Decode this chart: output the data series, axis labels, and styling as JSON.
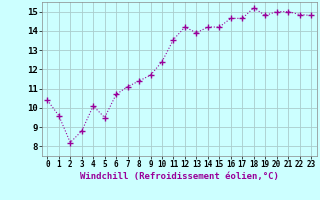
{
  "x": [
    0,
    1,
    2,
    3,
    4,
    5,
    6,
    7,
    8,
    9,
    10,
    11,
    12,
    13,
    14,
    15,
    16,
    17,
    18,
    19,
    20,
    21,
    22,
    23
  ],
  "y": [
    10.4,
    9.6,
    8.2,
    8.8,
    10.1,
    9.5,
    10.7,
    11.1,
    11.4,
    11.7,
    12.4,
    13.55,
    14.2,
    13.9,
    14.2,
    14.2,
    14.65,
    14.65,
    15.2,
    14.8,
    15.0,
    15.0,
    14.85,
    14.8
  ],
  "line_color": "#990099",
  "marker": "+",
  "markersize": 4,
  "linewidth": 0.8,
  "bg_color": "#ccffff",
  "grid_color": "#aacccc",
  "xlabel": "Windchill (Refroidissement éolien,°C)",
  "xlabel_fontsize": 6.5,
  "xlim": [
    -0.5,
    23.5
  ],
  "ylim": [
    7.5,
    15.5
  ],
  "yticks": [
    8,
    9,
    10,
    11,
    12,
    13,
    14,
    15
  ],
  "xticks": [
    0,
    1,
    2,
    3,
    4,
    5,
    6,
    7,
    8,
    9,
    10,
    11,
    12,
    13,
    14,
    15,
    16,
    17,
    18,
    19,
    20,
    21,
    22,
    23
  ],
  "tick_fontsize": 5.5,
  "ytick_fontsize": 6.5
}
